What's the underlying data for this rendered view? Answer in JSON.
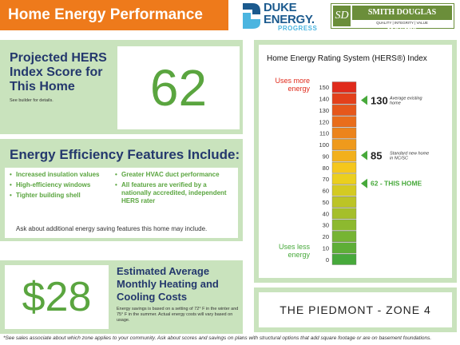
{
  "header": {
    "title": "Home Energy Performance"
  },
  "logos": {
    "duke": {
      "line1": "DUKE",
      "line2": "ENERGY.",
      "progress": "PROGRESS"
    },
    "smith_douglas": {
      "monogram": "SD",
      "name": "SMITH DOUGLAS HOMES",
      "tagline": "QUALITY | INTEGRITY | VALUE"
    }
  },
  "hers": {
    "label": "Projected HERS Index Score for This Home",
    "score": "62",
    "note": "See builder for details."
  },
  "features": {
    "title": "Energy Efficiency Features Include:",
    "left": [
      "Increased insulation values",
      "High-efficiency windows",
      "Tighter building shell"
    ],
    "right": [
      "Greater HVAC duct performance",
      "All features are verified by a nationally accredited, independent HERS rater"
    ],
    "footer": "Ask about additional energy saving features this home may include."
  },
  "savings": {
    "amount": "$28",
    "title": "Estimated Average Monthly Heating and Cooling Costs",
    "note": "Energy savings is based on a setting of 72° F in the winter and 75° F in the summer. Actual energy costs will vary based on usage."
  },
  "chart_data": {
    "type": "bar",
    "title": "Home Energy Rating System (HERS®) Index",
    "scale_ticks": [
      150,
      140,
      130,
      120,
      110,
      100,
      90,
      80,
      70,
      60,
      50,
      40,
      30,
      20,
      10,
      0
    ],
    "ylim": [
      0,
      150
    ],
    "top_label": "Uses more energy",
    "bottom_label": "Uses less energy",
    "markers": [
      {
        "value": 130,
        "label": "130",
        "desc": "Average existing home"
      },
      {
        "value": 85,
        "label": "85",
        "desc": "Standard new home in NC/SC"
      },
      {
        "value": 62,
        "label": "62 - THIS HOME",
        "desc": ""
      }
    ],
    "colors": {
      "high": "#e02a1b",
      "mid": "#f7d21c",
      "low": "#47a93b",
      "marker": "#47a93b"
    }
  },
  "zone": {
    "label": "THE PIEDMONT - ZONE 4"
  },
  "footnote": "*See sales associate about which zone applies to your community.  Ask about scores and savings on plans with structural options that add square footage or are on basement foundations."
}
